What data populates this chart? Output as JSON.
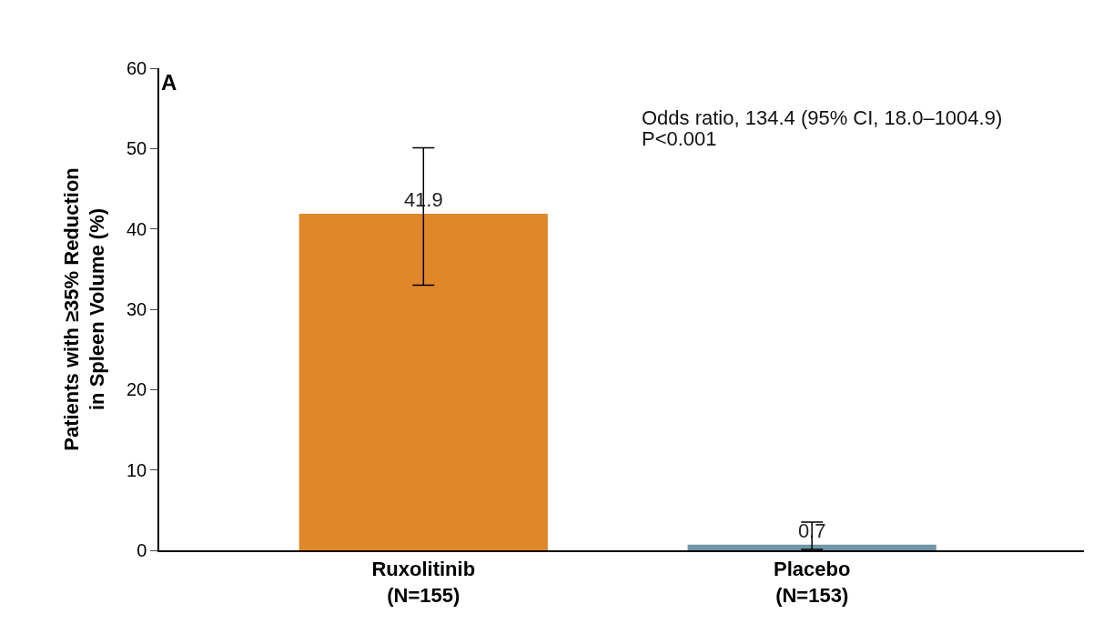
{
  "chart_data": {
    "type": "bar",
    "ylabel": "Patients with ≥35% Reduction\nin Spleen Volume (%)",
    "categories": [
      "Ruxolitinib\n(N=155)",
      "Placebo\n(N=153)"
    ],
    "values": [
      41.9,
      0.7
    ],
    "colors": [
      "#e0872a",
      "#6f97a8"
    ],
    "errors": [
      [
        33.0,
        50.1
      ],
      [
        0.1,
        3.5
      ]
    ],
    "data_labels": true,
    "ylim": [
      0,
      60
    ],
    "yticks": [
      0,
      10,
      20,
      30,
      40,
      50,
      60
    ],
    "legend": false,
    "annotations": [
      "A",
      "Odds ratio, 134.4 (95% CI, 18.0–1004.9)",
      "P<0.001"
    ]
  }
}
